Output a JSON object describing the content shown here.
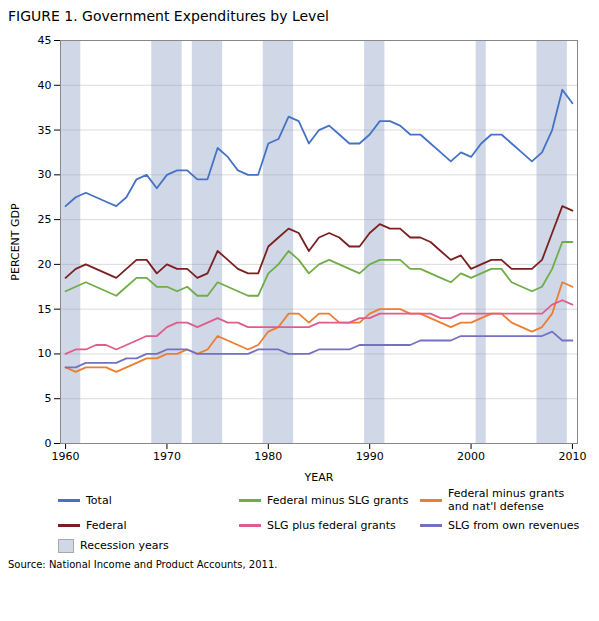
{
  "chart_data": {
    "type": "line",
    "title": "FIGURE 1.  Government Expenditures by Level",
    "xlabel": "YEAR",
    "ylabel": "PERCENT GDP",
    "source": "Source: National Income and Product Accounts, 2011.",
    "x": [
      1960,
      1961,
      1962,
      1963,
      1964,
      1965,
      1966,
      1967,
      1968,
      1969,
      1970,
      1971,
      1972,
      1973,
      1974,
      1975,
      1976,
      1977,
      1978,
      1979,
      1980,
      1981,
      1982,
      1983,
      1984,
      1985,
      1986,
      1987,
      1988,
      1989,
      1990,
      1991,
      1992,
      1993,
      1994,
      1995,
      1996,
      1997,
      1998,
      1999,
      2000,
      2001,
      2002,
      2003,
      2004,
      2005,
      2006,
      2007,
      2008,
      2009,
      2010
    ],
    "series": [
      {
        "name": "Total",
        "color": "#4472c4",
        "values": [
          26.5,
          27.5,
          28.0,
          27.5,
          27.0,
          26.5,
          27.5,
          29.5,
          30.0,
          28.5,
          30.0,
          30.5,
          30.5,
          29.5,
          29.5,
          33.0,
          32.0,
          30.5,
          30.0,
          30.0,
          33.5,
          34.0,
          36.5,
          36.0,
          33.5,
          35.0,
          35.5,
          34.5,
          33.5,
          33.5,
          34.5,
          36.0,
          36.0,
          35.5,
          34.5,
          34.5,
          33.5,
          32.5,
          31.5,
          32.5,
          32.0,
          33.5,
          34.5,
          34.5,
          33.5,
          32.5,
          31.5,
          32.5,
          35.0,
          39.5,
          38.0
        ]
      },
      {
        "name": "Federal minus SLG grants",
        "color": "#70ad47",
        "values": [
          17.0,
          17.5,
          18.0,
          17.5,
          17.0,
          16.5,
          17.5,
          18.5,
          18.5,
          17.5,
          17.5,
          17.0,
          17.5,
          16.5,
          16.5,
          18.0,
          17.5,
          17.0,
          16.5,
          16.5,
          19.0,
          20.0,
          21.5,
          20.5,
          19.0,
          20.0,
          20.5,
          20.0,
          19.5,
          19.0,
          20.0,
          20.5,
          20.5,
          20.5,
          19.5,
          19.5,
          19.0,
          18.5,
          18.0,
          19.0,
          18.5,
          19.0,
          19.5,
          19.5,
          18.0,
          17.5,
          17.0,
          17.5,
          19.5,
          22.5,
          22.5
        ]
      },
      {
        "name": "Federal minus grants\nand nat'l defense",
        "color": "#ed7d31",
        "values": [
          8.5,
          8.0,
          8.5,
          8.5,
          8.5,
          8.0,
          8.5,
          9.0,
          9.5,
          9.5,
          10.0,
          10.0,
          10.5,
          10.0,
          10.5,
          12.0,
          11.5,
          11.0,
          10.5,
          11.0,
          12.5,
          13.0,
          14.5,
          14.5,
          13.5,
          14.5,
          14.5,
          13.5,
          13.5,
          13.5,
          14.5,
          15.0,
          15.0,
          15.0,
          14.5,
          14.5,
          14.0,
          13.5,
          13.0,
          13.5,
          13.5,
          14.0,
          14.5,
          14.5,
          13.5,
          13.0,
          12.5,
          13.0,
          14.5,
          18.0,
          17.5
        ]
      },
      {
        "name": "Federal",
        "color": "#7b2020",
        "values": [
          18.5,
          19.5,
          20.0,
          19.5,
          19.0,
          18.5,
          19.5,
          20.5,
          20.5,
          19.0,
          20.0,
          19.5,
          19.5,
          18.5,
          19.0,
          21.5,
          20.5,
          19.5,
          19.0,
          19.0,
          22.0,
          23.0,
          24.0,
          23.5,
          21.5,
          23.0,
          23.5,
          23.0,
          22.0,
          22.0,
          23.5,
          24.5,
          24.0,
          24.0,
          23.0,
          23.0,
          22.5,
          21.5,
          20.5,
          21.0,
          19.5,
          20.0,
          20.5,
          20.5,
          19.5,
          19.5,
          19.5,
          20.5,
          23.5,
          26.5,
          26.0
        ]
      },
      {
        "name": "SLG plus federal grants",
        "color": "#e05c8c",
        "values": [
          10.0,
          10.5,
          10.5,
          11.0,
          11.0,
          10.5,
          11.0,
          11.5,
          12.0,
          12.0,
          13.0,
          13.5,
          13.5,
          13.0,
          13.5,
          14.0,
          13.5,
          13.5,
          13.0,
          13.0,
          13.0,
          13.0,
          13.0,
          13.0,
          13.0,
          13.5,
          13.5,
          13.5,
          13.5,
          14.0,
          14.0,
          14.5,
          14.5,
          14.5,
          14.5,
          14.5,
          14.5,
          14.0,
          14.0,
          14.5,
          14.5,
          14.5,
          14.5,
          14.5,
          14.5,
          14.5,
          14.5,
          14.5,
          15.5,
          16.0,
          15.5
        ]
      },
      {
        "name": "SLG from own revenues",
        "color": "#7472c0",
        "values": [
          8.5,
          8.5,
          9.0,
          9.0,
          9.0,
          9.0,
          9.5,
          9.5,
          10.0,
          10.0,
          10.5,
          10.5,
          10.5,
          10.0,
          10.0,
          10.0,
          10.0,
          10.0,
          10.0,
          10.5,
          10.5,
          10.5,
          10.0,
          10.0,
          10.0,
          10.5,
          10.5,
          10.5,
          10.5,
          11.0,
          11.0,
          11.0,
          11.0,
          11.0,
          11.0,
          11.5,
          11.5,
          11.5,
          11.5,
          12.0,
          12.0,
          12.0,
          12.0,
          12.0,
          12.0,
          12.0,
          12.0,
          12.0,
          12.5,
          11.5,
          11.5
        ]
      }
    ],
    "recession_bands": {
      "name": "Recession years",
      "color": "#d0d8e8",
      "ranges": [
        [
          1959.5,
          1961.5
        ],
        [
          1968.5,
          1971.5
        ],
        [
          1972.5,
          1975.5
        ],
        [
          1979.5,
          1982.5
        ],
        [
          1989.5,
          1991.5
        ],
        [
          2000.5,
          2001.5
        ],
        [
          2006.5,
          2009.5
        ]
      ]
    },
    "xlim": [
      1959.5,
      2010.5
    ],
    "xticks": [
      1960,
      1970,
      1980,
      1990,
      2000,
      2010
    ],
    "ylim": [
      0,
      45
    ],
    "yticks": [
      0,
      5,
      10,
      15,
      20,
      25,
      30,
      35,
      40,
      45
    ],
    "grid": true,
    "legend": "bottom"
  }
}
